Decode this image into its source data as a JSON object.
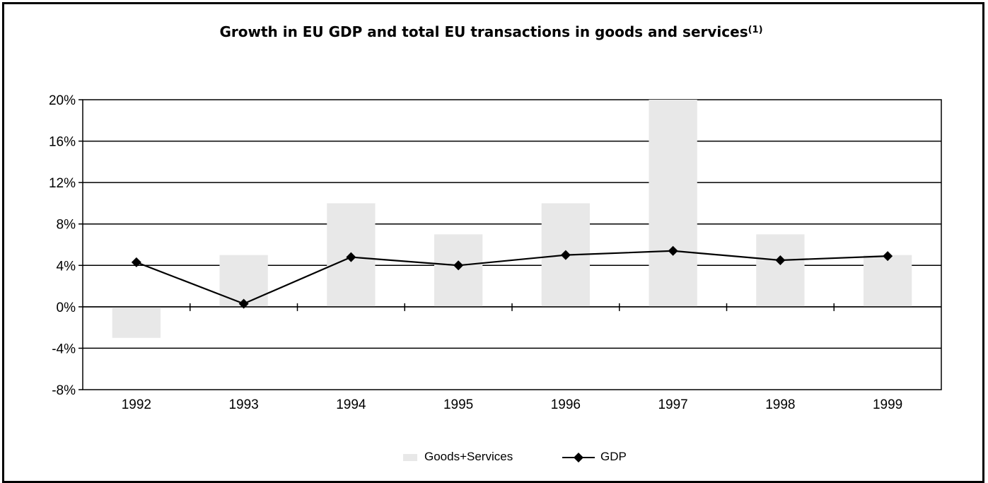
{
  "chart_data": {
    "type": "bar",
    "title": "Growth in EU GDP and total EU transactions in goods and services",
    "title_footnote": "(1)",
    "categories": [
      "1992",
      "1993",
      "1994",
      "1995",
      "1996",
      "1997",
      "1998",
      "1999"
    ],
    "series": [
      {
        "name": "Goods+Services",
        "kind": "bar",
        "color": "#e8e8e8",
        "values": [
          -3,
          5,
          10,
          7,
          10,
          20,
          7,
          5
        ]
      },
      {
        "name": "GDP",
        "kind": "line",
        "marker": "diamond",
        "color": "#000000",
        "values": [
          4.3,
          0.3,
          4.8,
          4.0,
          5.0,
          5.4,
          4.5,
          4.9
        ]
      }
    ],
    "ylim": [
      -8,
      20
    ],
    "yticks": [
      -8,
      -4,
      0,
      4,
      8,
      12,
      16,
      20
    ],
    "ytick_labels": [
      "-8%",
      "-4%",
      "0%",
      "4%",
      "8%",
      "12%",
      "16%",
      "20%"
    ],
    "grid": true,
    "legend_position": "bottom"
  }
}
